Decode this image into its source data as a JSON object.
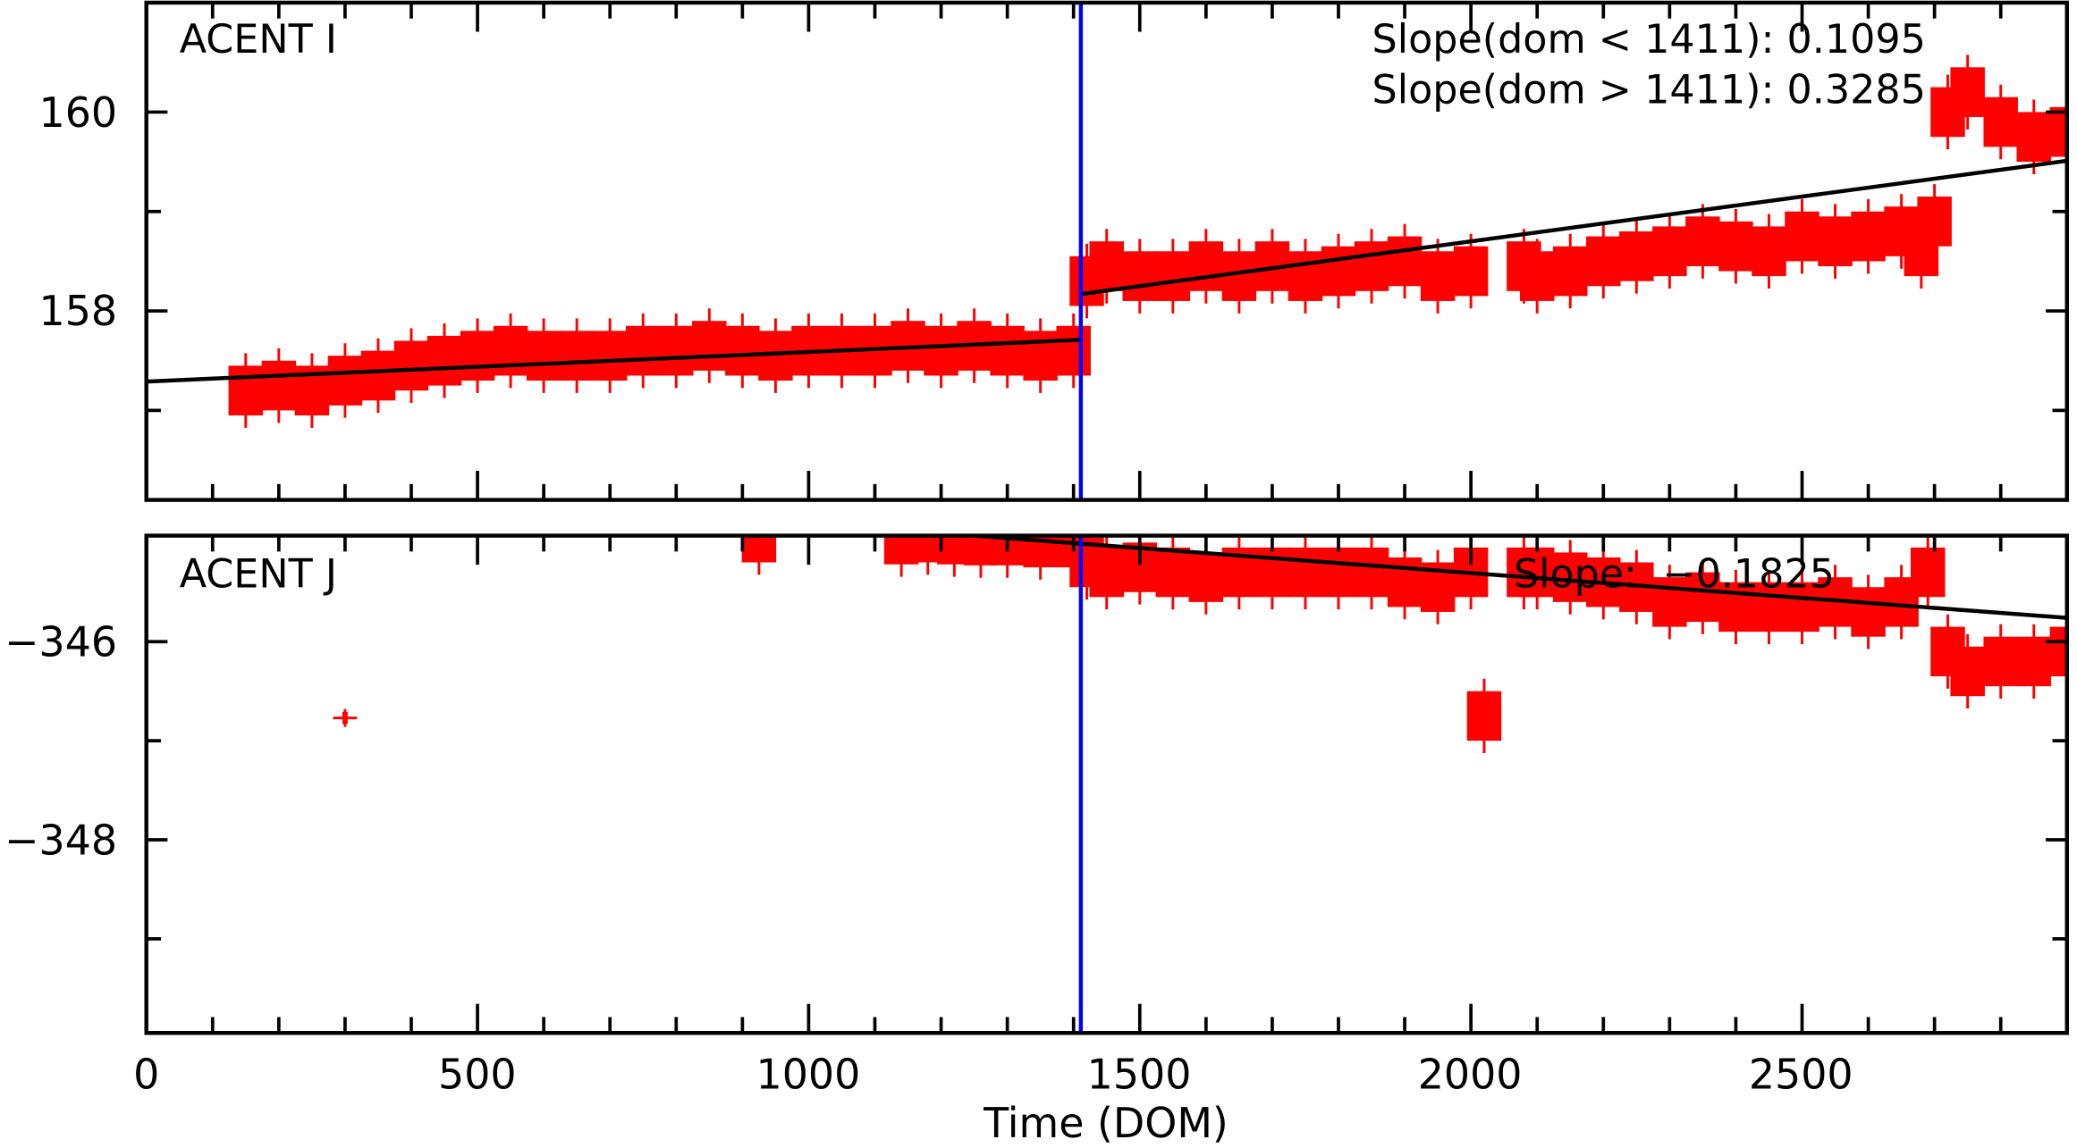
{
  "chart_data": [
    {
      "type": "scatter",
      "panel_label": "ACENT I",
      "xlim": [
        0,
        2900
      ],
      "ylim": [
        156.1,
        161.1
      ],
      "y_ticks": [
        160,
        158
      ],
      "y_tick_labels": [
        "160",
        "158"
      ],
      "y_minor_ticks": [
        157,
        159
      ],
      "annotations": [
        "Slope(dom < 1411): 0.1095",
        "Slope(dom > 1411): 0.3285"
      ],
      "fit_lines": [
        {
          "x": [
            0,
            1411
          ],
          "y": [
            157.29,
            157.71
          ]
        },
        {
          "x": [
            1411,
            2900
          ],
          "y": [
            158.17,
            159.51
          ]
        }
      ],
      "points": {
        "x": [
          150,
          200,
          250,
          300,
          350,
          400,
          450,
          500,
          550,
          600,
          650,
          700,
          750,
          800,
          850,
          900,
          950,
          1000,
          1050,
          1100,
          1150,
          1200,
          1250,
          1300,
          1350,
          1400,
          1420,
          1450,
          1500,
          1550,
          1600,
          1650,
          1700,
          1750,
          1800,
          1850,
          1900,
          1950,
          2000,
          2080,
          2100,
          2150,
          2200,
          2250,
          2300,
          2350,
          2400,
          2450,
          2500,
          2550,
          2600,
          2650,
          2680,
          2700,
          2720,
          2750,
          2800,
          2850,
          2900
        ],
        "y": [
          157.2,
          157.25,
          157.2,
          157.3,
          157.35,
          157.45,
          157.5,
          157.55,
          157.6,
          157.55,
          157.55,
          157.55,
          157.6,
          157.6,
          157.65,
          157.6,
          157.55,
          157.6,
          157.6,
          157.6,
          157.65,
          157.6,
          157.65,
          157.6,
          157.55,
          157.6,
          158.3,
          158.45,
          158.35,
          158.35,
          158.45,
          158.35,
          158.45,
          158.35,
          158.4,
          158.45,
          158.5,
          158.35,
          158.4,
          158.45,
          158.35,
          158.4,
          158.5,
          158.55,
          158.6,
          158.7,
          158.65,
          158.6,
          158.75,
          158.7,
          158.75,
          158.8,
          158.6,
          158.9,
          160.0,
          160.2,
          159.9,
          159.75,
          159.8
        ],
        "yerr": 0.25
      }
    },
    {
      "type": "scatter",
      "panel_label": "ACENT J",
      "xlim": [
        0,
        2900
      ],
      "ylim": [
        -349.95,
        -344.93
      ],
      "y_ticks": [
        -346,
        -348
      ],
      "y_tick_labels": [
        "−346",
        "−348"
      ],
      "y_minor_ticks": [
        -347,
        -349
      ],
      "annotations": [
        "Slope:  −0.1825"
      ],
      "fit_lines": [
        {
          "x": [
            1250,
            2900
          ],
          "y": [
            -344.93,
            -345.76
          ]
        }
      ],
      "points": {
        "x": [
          300,
          925,
          1140,
          1180,
          1220,
          1260,
          1300,
          1350,
          1400,
          1420,
          1450,
          1500,
          1550,
          1600,
          1650,
          1700,
          1750,
          1800,
          1850,
          1900,
          1950,
          2000,
          2020,
          2080,
          2100,
          2150,
          2200,
          2250,
          2300,
          2350,
          2400,
          2450,
          2500,
          2550,
          2600,
          2650,
          2690,
          2720,
          2750,
          2800,
          2850,
          2900
        ],
        "y": [
          -346.77,
          -344.95,
          -344.97,
          -344.95,
          -344.97,
          -344.98,
          -344.98,
          -345.0,
          -345.0,
          -345.2,
          -345.3,
          -345.25,
          -345.3,
          -345.35,
          -345.3,
          -345.3,
          -345.3,
          -345.3,
          -345.3,
          -345.4,
          -345.45,
          -345.3,
          -346.75,
          -345.3,
          -345.3,
          -345.35,
          -345.4,
          -345.45,
          -345.6,
          -345.55,
          -345.65,
          -345.65,
          -345.65,
          -345.6,
          -345.7,
          -345.6,
          -345.3,
          -346.1,
          -346.3,
          -346.2,
          -346.2,
          -346.1
        ],
        "yerr": 0.25
      }
    }
  ],
  "x_ticks": [
    0,
    500,
    1000,
    1500,
    2000,
    2500
  ],
  "x_tick_labels": [
    "0",
    "500",
    "1000",
    "1500",
    "2000",
    "2500"
  ],
  "xlabel": "Time (DOM)",
  "breakpoint_dom": 1411,
  "colors": {
    "points": "#ff0000",
    "fit": "#000000",
    "breakpoint": "#0000ff"
  }
}
